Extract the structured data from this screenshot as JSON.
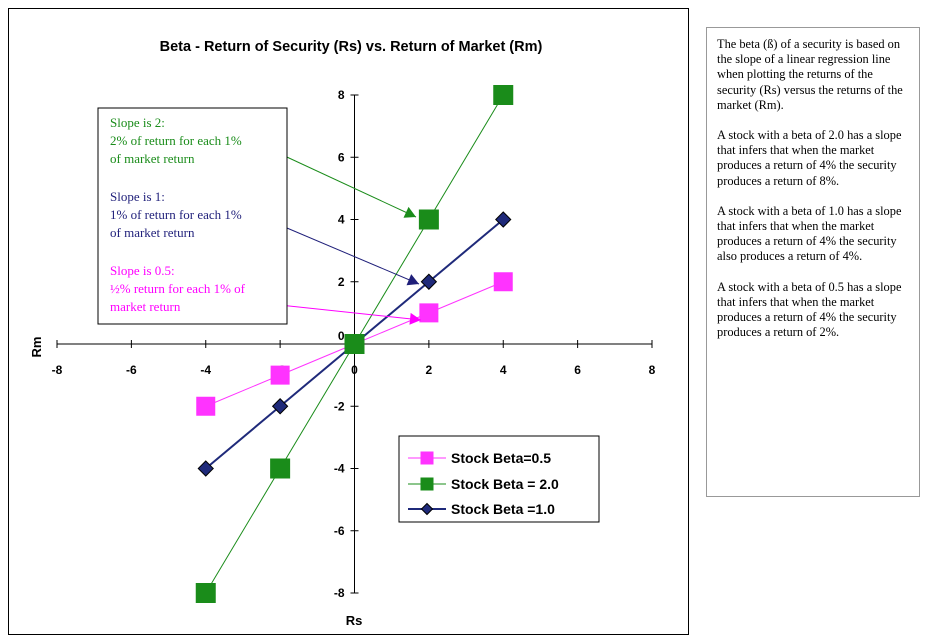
{
  "chart_data": {
    "type": "scatter",
    "title": "Beta - Return of Security (Rs) vs. Return of Market (Rm)",
    "xlabel": "Rs",
    "ylabel": "Rm",
    "xlim": [
      -8,
      8
    ],
    "ylim": [
      -8,
      8
    ],
    "xticks": [
      -8,
      -6,
      -4,
      -2,
      0,
      2,
      4,
      6,
      8
    ],
    "yticks": [
      -8,
      -6,
      -4,
      -2,
      0,
      2,
      4,
      6,
      8
    ],
    "grid": false,
    "legend_position": "bottom-right",
    "series": [
      {
        "name": "Stock Beta=0.5",
        "marker": "square",
        "color": "#ff33ff",
        "x": [
          -4,
          -2,
          0,
          2,
          4
        ],
        "y": [
          -2,
          -1,
          0,
          1,
          2
        ]
      },
      {
        "name": "Stock Beta = 2.0",
        "marker": "square",
        "color": "#1a8c1a",
        "x": [
          -4,
          -2,
          0,
          2,
          4
        ],
        "y": [
          -8,
          -4,
          0,
          4,
          8
        ]
      },
      {
        "name": "Stock Beta =1.0",
        "marker": "diamond",
        "color": "#1f2a7a",
        "x": [
          -4,
          -2,
          0,
          2,
          4
        ],
        "y": [
          -4,
          -2,
          0,
          2,
          4
        ]
      }
    ],
    "annotations": [
      {
        "color": "#1a8c1a",
        "lines": [
          "Slope is 2:",
          "2% of return for each 1%",
          "of market return"
        ]
      },
      {
        "color": "#1f1f7a",
        "lines": [
          "Slope is 1:",
          "1% of return for each 1%",
          "of market return"
        ]
      },
      {
        "color": "#ff00ff",
        "lines": [
          "Slope is 0.5:",
          "½% return for each 1% of",
          "market return"
        ]
      }
    ]
  },
  "side_note": {
    "paragraphs": [
      "The beta (ß) of a security is based on the slope of a linear regression line when plotting the returns of the security (Rs) versus the returns of the market (Rm).",
      "A stock with a beta of 2.0 has a slope that infers that when the market produces a return of 4% the security produces a return of 8%.",
      "A stock with a beta of 1.0 has a slope that infers that when the market produces a return of 4% the security also produces a return of 4%.",
      "A stock with a beta of 0.5 has a slope that infers that when the market produces a return of 4% the security produces a return of 2%."
    ]
  }
}
